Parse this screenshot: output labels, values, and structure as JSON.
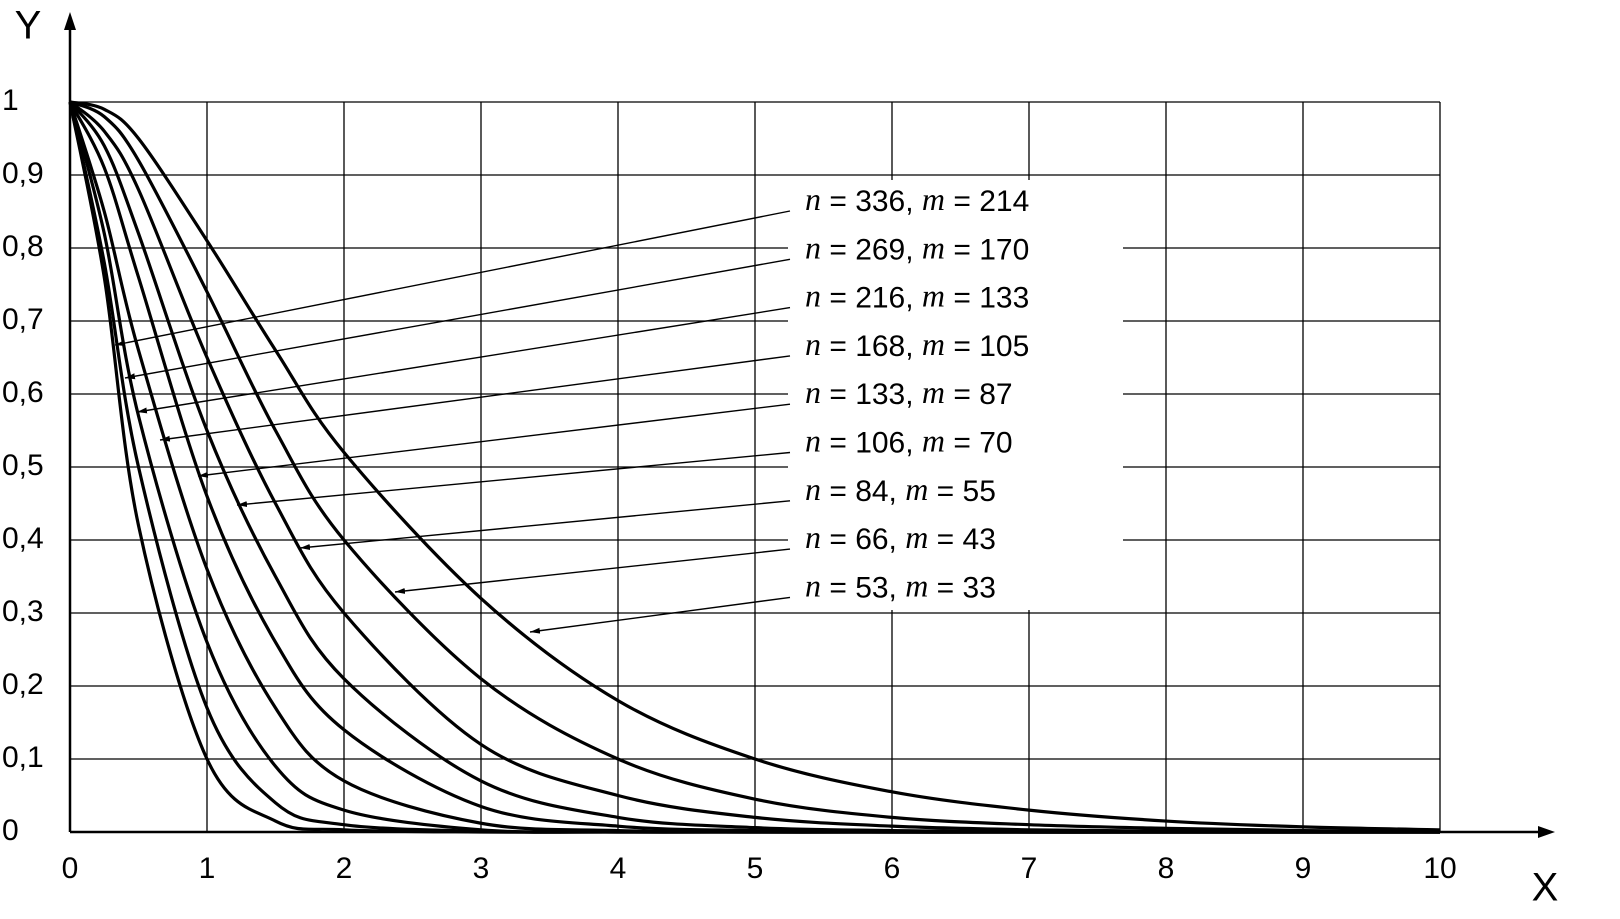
{
  "chart_data": {
    "type": "line",
    "x_label": "X",
    "y_label": "Y",
    "x": [
      0,
      0.25,
      0.5,
      1,
      1.5,
      2,
      3,
      4,
      5,
      6,
      7,
      8,
      9,
      10
    ],
    "series": [
      {
        "name": "n = 336, m = 214",
        "color": "#000000",
        "values": [
          1,
          0.76,
          0.42,
          0.1,
          0.015,
          0.003,
          0,
          0,
          0,
          0,
          0,
          0,
          0,
          0
        ]
      },
      {
        "name": "n = 269, m = 170",
        "color": "#000000",
        "values": [
          1,
          0.78,
          0.5,
          0.17,
          0.04,
          0.01,
          0.001,
          0,
          0,
          0,
          0,
          0,
          0,
          0
        ]
      },
      {
        "name": "n = 216, m = 133",
        "color": "#000000",
        "values": [
          1,
          0.82,
          0.57,
          0.26,
          0.09,
          0.03,
          0.003,
          0,
          0,
          0,
          0,
          0,
          0,
          0
        ]
      },
      {
        "name": "n = 168, m = 105",
        "color": "#000000",
        "values": [
          1,
          0.85,
          0.66,
          0.36,
          0.17,
          0.07,
          0.012,
          0.002,
          0,
          0,
          0,
          0,
          0,
          0
        ]
      },
      {
        "name": "n = 133, m = 87",
        "color": "#000000",
        "values": [
          1,
          0.91,
          0.76,
          0.46,
          0.26,
          0.14,
          0.035,
          0.008,
          0.002,
          0,
          0,
          0,
          0,
          0
        ]
      },
      {
        "name": "n = 106, m = 70",
        "color": "#000000",
        "values": [
          1,
          0.94,
          0.82,
          0.55,
          0.35,
          0.21,
          0.07,
          0.02,
          0.006,
          0.002,
          0,
          0,
          0,
          0
        ]
      },
      {
        "name": "n = 84, m = 55",
        "color": "#000000",
        "values": [
          1,
          0.96,
          0.88,
          0.65,
          0.45,
          0.3,
          0.12,
          0.05,
          0.02,
          0.008,
          0.003,
          0.001,
          0.001,
          0
        ]
      },
      {
        "name": "n = 66, m = 43",
        "color": "#000000",
        "values": [
          1,
          0.98,
          0.92,
          0.74,
          0.55,
          0.4,
          0.21,
          0.1,
          0.045,
          0.02,
          0.01,
          0.005,
          0.002,
          0.001
        ]
      },
      {
        "name": "n = 53, m = 33",
        "color": "#000000",
        "values": [
          1,
          0.99,
          0.95,
          0.81,
          0.66,
          0.52,
          0.32,
          0.18,
          0.1,
          0.055,
          0.03,
          0.015,
          0.007,
          0.003
        ]
      }
    ],
    "xlim": [
      0,
      10
    ],
    "ylim": [
      0,
      1
    ],
    "xticks": [
      0,
      1,
      2,
      3,
      4,
      5,
      6,
      7,
      8,
      9,
      10
    ],
    "yticks": [
      0,
      {
        "value": 0.1,
        "label": "0,1"
      },
      {
        "value": 0.2,
        "label": "0,2"
      },
      {
        "value": 0.3,
        "label": "0,3"
      },
      {
        "value": 0.4,
        "label": "0,4"
      },
      {
        "value": 0.5,
        "label": "0,5"
      },
      {
        "value": 0.6,
        "label": "0,6"
      },
      {
        "value": 0.7,
        "label": "0,7"
      },
      {
        "value": 0.8,
        "label": "0,8"
      },
      {
        "value": 0.9,
        "label": "0,9"
      },
      1
    ],
    "grid": true
  }
}
